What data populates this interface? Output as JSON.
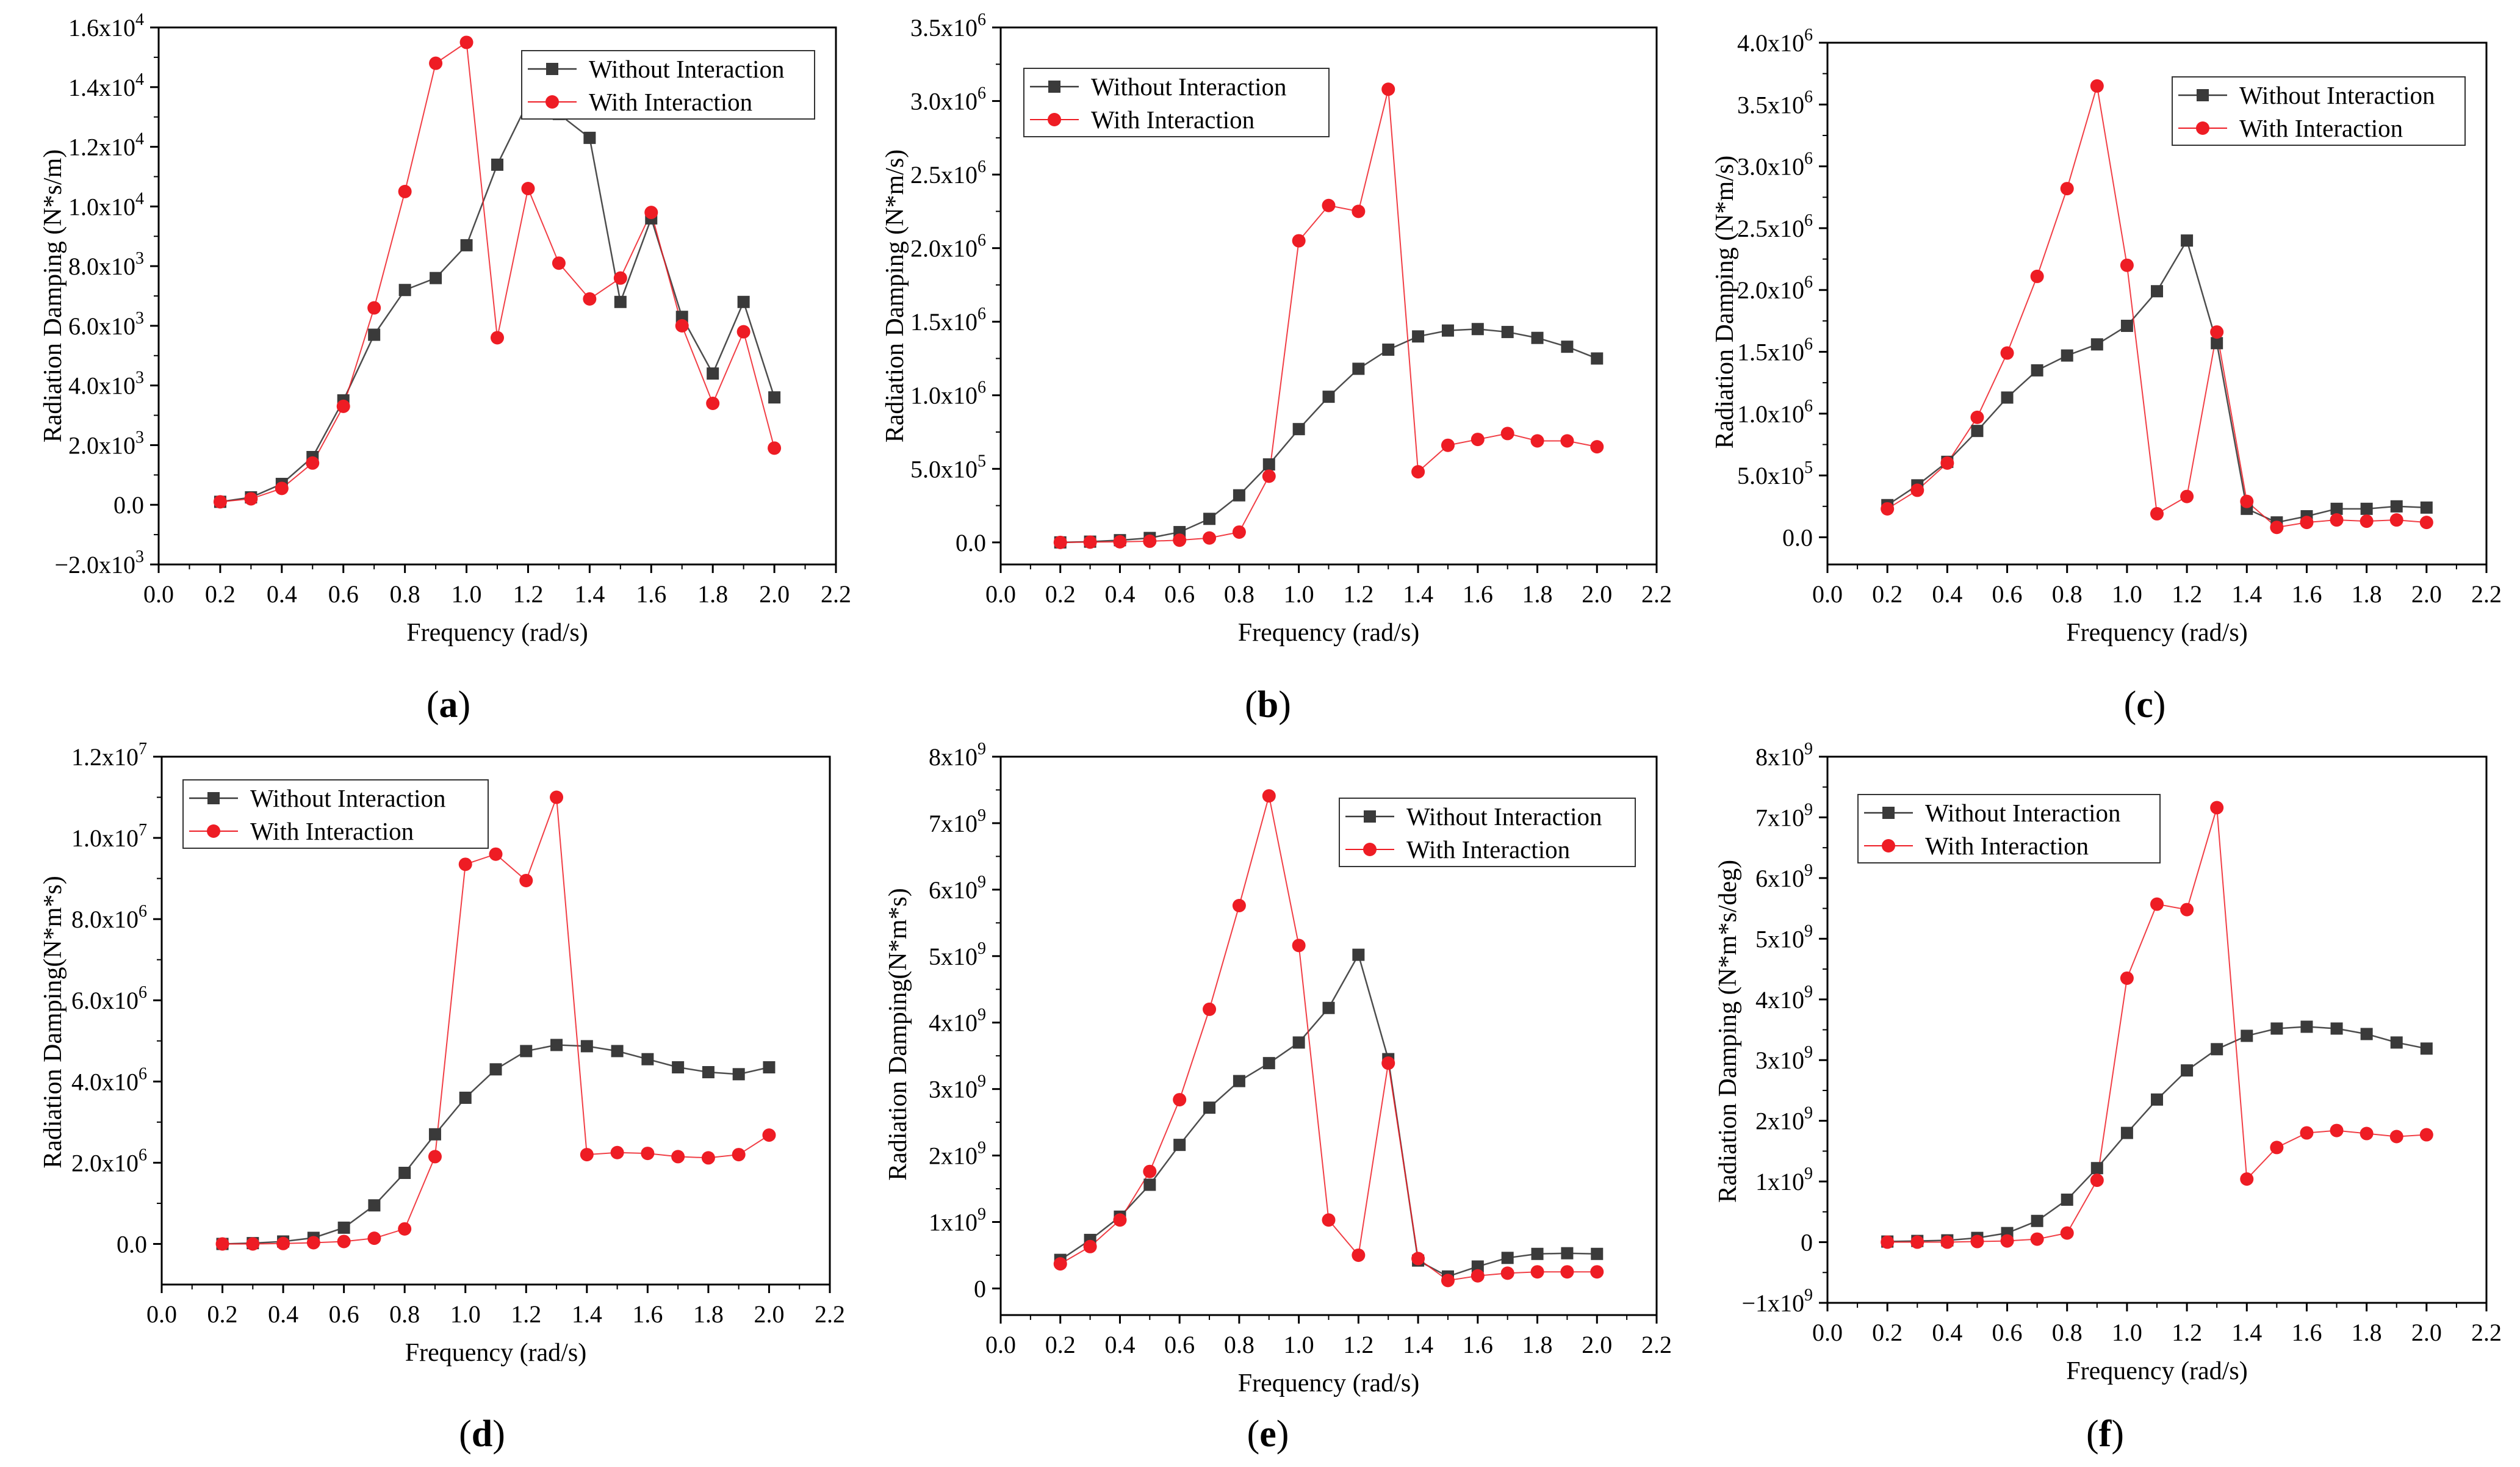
{
  "figure": {
    "series_names": [
      "Without Interaction",
      "With Interaction"
    ],
    "colors": {
      "without": "#3a3a3a",
      "with": "#ee1c24",
      "axis": "#000000"
    }
  },
  "chart_data": [
    {
      "panel": "a",
      "type": "line",
      "xlabel": "Frequency (rad/s)",
      "ylabel": "Radiation Damping (N*s/m)",
      "xlim": [
        0,
        2.2
      ],
      "xticks": [
        0,
        0.2,
        0.4,
        0.6,
        0.8,
        1.0,
        1.2,
        1.4,
        1.6,
        1.8,
        2.0,
        2.2
      ],
      "xtick_labels": [
        "0.0",
        "0.2",
        "0.4",
        "0.6",
        "0.8",
        "1.0",
        "1.2",
        "1.4",
        "1.6",
        "1.8",
        "2.0",
        "2.2"
      ],
      "ylim": [
        -2000,
        16000
      ],
      "yticks": [
        -2000,
        0,
        2000,
        4000,
        6000,
        8000,
        10000,
        12000,
        14000,
        16000
      ],
      "ytick_labels": [
        [
          "−2.0x10",
          "3"
        ],
        [
          "0.0",
          ""
        ],
        [
          "2.0x10",
          "3"
        ],
        [
          "4.0x10",
          "3"
        ],
        [
          "6.0x10",
          "3"
        ],
        [
          "8.0x10",
          "3"
        ],
        [
          "1.0x10",
          "4"
        ],
        [
          "1.2x10",
          "4"
        ],
        [
          "1.4x10",
          "4"
        ],
        [
          "1.6x10",
          "4"
        ]
      ],
      "x": [
        0.2,
        0.3,
        0.4,
        0.5,
        0.6,
        0.7,
        0.8,
        0.9,
        1.0,
        1.1,
        1.2,
        1.3,
        1.4,
        1.5,
        1.6,
        1.7,
        1.8,
        1.9,
        2.0
      ],
      "series": [
        {
          "name": "Without Interaction",
          "values": [
            100,
            250,
            700,
            1600,
            3500,
            5700,
            7200,
            7600,
            8700,
            11400,
            13500,
            13100,
            12300,
            6800,
            9600,
            6300,
            4400,
            6800,
            3600
          ]
        },
        {
          "name": "With Interaction",
          "values": [
            100,
            200,
            550,
            1400,
            3300,
            6600,
            10500,
            14800,
            15500,
            5600,
            10600,
            8100,
            6900,
            7600,
            9800,
            6000,
            3400,
            5800,
            1900
          ]
        }
      ],
      "legend_position": "top-right",
      "panel_label": "a"
    },
    {
      "panel": "b",
      "type": "line",
      "xlabel": "Frequency (rad/s)",
      "ylabel": "Radiation Damping (N*m/s)",
      "xlim": [
        0,
        2.2
      ],
      "xticks": [
        0,
        0.2,
        0.4,
        0.6,
        0.8,
        1.0,
        1.2,
        1.4,
        1.6,
        1.8,
        2.0,
        2.2
      ],
      "xtick_labels": [
        "0.0",
        "0.2",
        "0.4",
        "0.6",
        "0.8",
        "1.0",
        "1.2",
        "1.4",
        "1.6",
        "1.8",
        "2.0",
        "2.2"
      ],
      "ylim": [
        -150000,
        3500000
      ],
      "yticks": [
        0,
        500000,
        1000000,
        1500000,
        2000000,
        2500000,
        3000000,
        3500000
      ],
      "ytick_labels": [
        [
          "0.0",
          ""
        ],
        [
          "5.0x10",
          "5"
        ],
        [
          "1.0x10",
          "6"
        ],
        [
          "1.5x10",
          "6"
        ],
        [
          "2.0x10",
          "6"
        ],
        [
          "2.5x10",
          "6"
        ],
        [
          "3.0x10",
          "6"
        ],
        [
          "3.5x10",
          "6"
        ]
      ],
      "x": [
        0.2,
        0.3,
        0.4,
        0.5,
        0.6,
        0.7,
        0.8,
        0.9,
        1.0,
        1.1,
        1.2,
        1.3,
        1.4,
        1.5,
        1.6,
        1.7,
        1.8,
        1.9,
        2.0
      ],
      "series": [
        {
          "name": "Without Interaction",
          "values": [
            0,
            5000,
            15000,
            30000,
            70000,
            160000,
            320000,
            530000,
            770000,
            990000,
            1180000,
            1310000,
            1400000,
            1440000,
            1450000,
            1430000,
            1390000,
            1330000,
            1250000
          ]
        },
        {
          "name": "With Interaction",
          "values": [
            0,
            2000,
            4000,
            8000,
            15000,
            30000,
            70000,
            450000,
            2050000,
            2290000,
            2250000,
            3080000,
            480000,
            660000,
            700000,
            740000,
            690000,
            690000,
            650000
          ]
        }
      ],
      "legend_position": "top-left",
      "panel_label": "b"
    },
    {
      "panel": "c",
      "type": "line",
      "xlabel": "Frequency (rad/s)",
      "ylabel": "Radiation Damping (N*m/s)",
      "xlim": [
        0,
        2.2
      ],
      "xticks": [
        0,
        0.2,
        0.4,
        0.6,
        0.8,
        1.0,
        1.2,
        1.4,
        1.6,
        1.8,
        2.0,
        2.2
      ],
      "xtick_labels": [
        "0.0",
        "0.2",
        "0.4",
        "0.6",
        "0.8",
        "1.0",
        "1.2",
        "1.4",
        "1.6",
        "1.8",
        "2.0",
        "2.2"
      ],
      "ylim": [
        -220000,
        4000000
      ],
      "yticks": [
        0,
        500000,
        1000000,
        1500000,
        2000000,
        2500000,
        3000000,
        3500000,
        4000000
      ],
      "ytick_labels": [
        [
          "0.0",
          ""
        ],
        [
          "5.0x10",
          "5"
        ],
        [
          "1.0x10",
          "6"
        ],
        [
          "1.5x10",
          "6"
        ],
        [
          "2.0x10",
          "6"
        ],
        [
          "2.5x10",
          "6"
        ],
        [
          "3.0x10",
          "6"
        ],
        [
          "3.5x10",
          "6"
        ],
        [
          "4.0x10",
          "6"
        ]
      ],
      "x": [
        0.2,
        0.3,
        0.4,
        0.5,
        0.6,
        0.7,
        0.8,
        0.9,
        1.0,
        1.1,
        1.2,
        1.3,
        1.4,
        1.5,
        1.6,
        1.7,
        1.8,
        1.9,
        2.0
      ],
      "series": [
        {
          "name": "Without Interaction",
          "values": [
            260000,
            420000,
            610000,
            860000,
            1130000,
            1350000,
            1470000,
            1560000,
            1710000,
            1990000,
            2400000,
            1570000,
            230000,
            120000,
            170000,
            230000,
            230000,
            250000,
            240000
          ]
        },
        {
          "name": "With Interaction",
          "values": [
            230000,
            380000,
            600000,
            970000,
            1490000,
            2110000,
            2820000,
            3650000,
            2200000,
            190000,
            330000,
            1660000,
            290000,
            80000,
            120000,
            140000,
            130000,
            140000,
            120000
          ]
        }
      ],
      "legend_position": "top-right",
      "panel_label": "c"
    },
    {
      "panel": "d",
      "type": "line",
      "xlabel": "Frequency (rad/s)",
      "ylabel": "Radiation Damping(N*m*s)",
      "xlim": [
        0,
        2.2
      ],
      "xticks": [
        0,
        0.2,
        0.4,
        0.6,
        0.8,
        1.0,
        1.2,
        1.4,
        1.6,
        1.8,
        2.0,
        2.2
      ],
      "xtick_labels": [
        "0.0",
        "0.2",
        "0.4",
        "0.6",
        "0.8",
        "1.0",
        "1.2",
        "1.4",
        "1.6",
        "1.8",
        "2.0",
        "2.2"
      ],
      "ylim": [
        -1000000,
        12000000
      ],
      "yticks": [
        0,
        2000000,
        4000000,
        6000000,
        8000000,
        10000000,
        12000000
      ],
      "ytick_labels": [
        [
          "0.0",
          ""
        ],
        [
          "2.0x10",
          "6"
        ],
        [
          "4.0x10",
          "6"
        ],
        [
          "6.0x10",
          "6"
        ],
        [
          "8.0x10",
          "6"
        ],
        [
          "1.0x10",
          "7"
        ],
        [
          "1.2x10",
          "7"
        ]
      ],
      "x": [
        0.2,
        0.3,
        0.4,
        0.5,
        0.6,
        0.7,
        0.8,
        0.9,
        1.0,
        1.1,
        1.2,
        1.3,
        1.4,
        1.5,
        1.6,
        1.7,
        1.8,
        1.9,
        2.0
      ],
      "series": [
        {
          "name": "Without Interaction",
          "values": [
            0,
            20000,
            60000,
            150000,
            400000,
            950000,
            1750000,
            2700000,
            3600000,
            4300000,
            4750000,
            4900000,
            4870000,
            4750000,
            4550000,
            4350000,
            4230000,
            4180000,
            4350000
          ]
        },
        {
          "name": "With Interaction",
          "values": [
            0,
            0,
            10000,
            30000,
            60000,
            140000,
            370000,
            2150000,
            9350000,
            9600000,
            8950000,
            11000000,
            2200000,
            2250000,
            2230000,
            2150000,
            2120000,
            2200000,
            2680000
          ]
        }
      ],
      "legend_position": "top-left",
      "panel_label": "d"
    },
    {
      "panel": "e",
      "type": "line",
      "xlabel": "Frequency (rad/s)",
      "ylabel": "Radiation Damping(N*m*s)",
      "xlim": [
        0,
        2.2
      ],
      "xticks": [
        0,
        0.2,
        0.4,
        0.6,
        0.8,
        1.0,
        1.2,
        1.4,
        1.6,
        1.8,
        2.0,
        2.2
      ],
      "xtick_labels": [
        "0.0",
        "0.2",
        "0.4",
        "0.6",
        "0.8",
        "1.0",
        "1.2",
        "1.4",
        "1.6",
        "1.8",
        "2.0",
        "2.2"
      ],
      "ylim": [
        -400000000,
        8000000000
      ],
      "yticks": [
        0,
        1000000000,
        2000000000,
        3000000000,
        4000000000,
        5000000000,
        6000000000,
        7000000000,
        8000000000
      ],
      "ytick_labels": [
        [
          "0",
          ""
        ],
        [
          "1x10",
          "9"
        ],
        [
          "2x10",
          "9"
        ],
        [
          "3x10",
          "9"
        ],
        [
          "4x10",
          "9"
        ],
        [
          "5x10",
          "9"
        ],
        [
          "6x10",
          "9"
        ],
        [
          "7x10",
          "9"
        ],
        [
          "8x10",
          "9"
        ]
      ],
      "x": [
        0.2,
        0.3,
        0.4,
        0.5,
        0.6,
        0.7,
        0.8,
        0.9,
        1.0,
        1.1,
        1.2,
        1.3,
        1.4,
        1.5,
        1.6,
        1.7,
        1.8,
        1.9,
        2.0
      ],
      "series": [
        {
          "name": "Without Interaction",
          "values": [
            430000000,
            730000000,
            1080000000,
            1560000000,
            2160000000,
            2720000000,
            3120000000,
            3390000000,
            3700000000,
            4220000000,
            5020000000,
            3450000000,
            420000000,
            180000000,
            330000000,
            460000000,
            520000000,
            530000000,
            520000000
          ]
        },
        {
          "name": "With Interaction",
          "values": [
            370000000,
            630000000,
            1030000000,
            1760000000,
            2840000000,
            4200000000,
            5760000000,
            7410000000,
            5160000000,
            1030000000,
            500000000,
            3390000000,
            450000000,
            120000000,
            190000000,
            230000000,
            250000000,
            250000000,
            250000000
          ]
        }
      ],
      "legend_position": "top-right",
      "panel_label": "e"
    },
    {
      "panel": "f",
      "type": "line",
      "xlabel": "Frequency (rad/s)",
      "ylabel": "Radiation Damping (N*m*s/deg)",
      "xlim": [
        0,
        2.2
      ],
      "xticks": [
        0,
        0.2,
        0.4,
        0.6,
        0.8,
        1.0,
        1.2,
        1.4,
        1.6,
        1.8,
        2.0,
        2.2
      ],
      "xtick_labels": [
        "0.0",
        "0.2",
        "0.4",
        "0.6",
        "0.8",
        "1.0",
        "1.2",
        "1.4",
        "1.6",
        "1.8",
        "2.0",
        "2.2"
      ],
      "ylim": [
        -1000000000,
        8000000000
      ],
      "yticks": [
        -1000000000,
        0,
        1000000000,
        2000000000,
        3000000000,
        4000000000,
        5000000000,
        6000000000,
        7000000000,
        8000000000
      ],
      "ytick_labels": [
        [
          "−1x10",
          "9"
        ],
        [
          "0",
          ""
        ],
        [
          "1x10",
          "9"
        ],
        [
          "2x10",
          "9"
        ],
        [
          "3x10",
          "9"
        ],
        [
          "4x10",
          "9"
        ],
        [
          "5x10",
          "9"
        ],
        [
          "6x10",
          "9"
        ],
        [
          "7x10",
          "9"
        ],
        [
          "8x10",
          "9"
        ]
      ],
      "x": [
        0.2,
        0.3,
        0.4,
        0.5,
        0.6,
        0.7,
        0.8,
        0.9,
        1.0,
        1.1,
        1.2,
        1.3,
        1.4,
        1.5,
        1.6,
        1.7,
        1.8,
        1.9,
        2.0
      ],
      "series": [
        {
          "name": "Without Interaction",
          "values": [
            10000000,
            20000000,
            30000000,
            70000000,
            150000000,
            350000000,
            700000000,
            1220000000,
            1800000000,
            2350000000,
            2830000000,
            3180000000,
            3400000000,
            3520000000,
            3550000000,
            3520000000,
            3430000000,
            3290000000,
            3190000000
          ]
        },
        {
          "name": "With Interaction",
          "values": [
            0,
            0,
            0,
            10000000,
            20000000,
            50000000,
            150000000,
            1020000000,
            4350000000,
            5570000000,
            5480000000,
            7160000000,
            1040000000,
            1560000000,
            1800000000,
            1840000000,
            1790000000,
            1740000000,
            1770000000
          ]
        }
      ],
      "legend_position": "top-left",
      "panel_label": "f"
    }
  ]
}
